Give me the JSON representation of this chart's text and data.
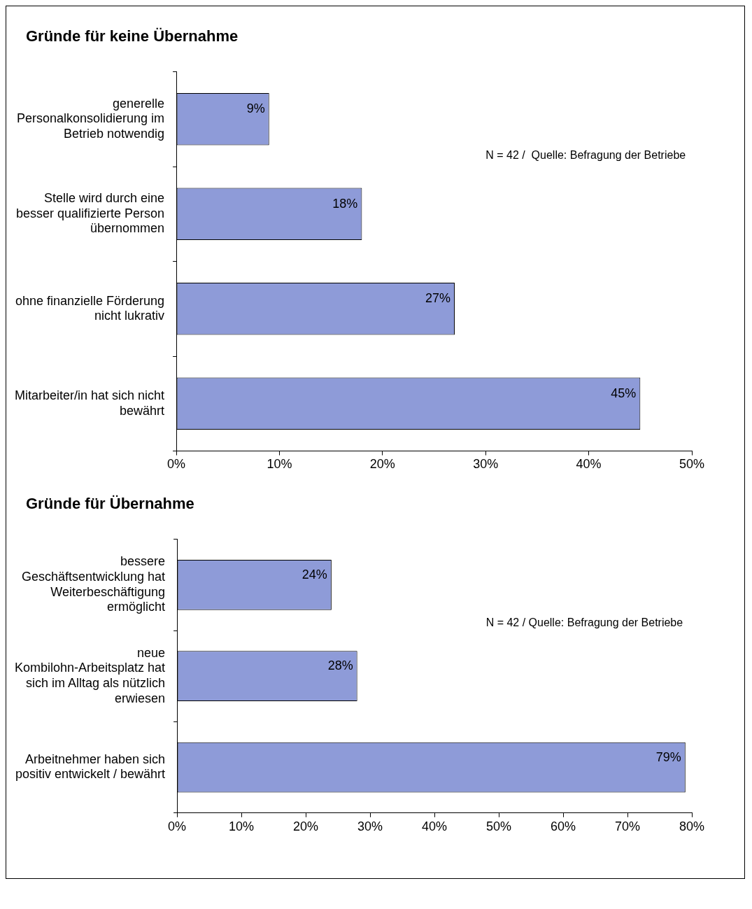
{
  "chart_data": [
    {
      "type": "bar",
      "orientation": "horizontal",
      "title": "Gründe für keine Übernahme",
      "categories": [
        "generelle Personalkonsolidierung im Betrieb notwendig",
        "Stelle wird durch eine besser qualifizierte Person übernommen",
        "ohne finanzielle Förderung nicht lukrativ",
        "Mitarbeiter/in hat sich nicht bewährt"
      ],
      "values": [
        9,
        18,
        27,
        45
      ],
      "value_labels": [
        "9%",
        "18%",
        "27%",
        "45%"
      ],
      "color": "#8e9bd8",
      "xlim": [
        0,
        50
      ],
      "xticks": [
        {
          "value": 0,
          "label": "0%"
        },
        {
          "value": 10,
          "label": "10%"
        },
        {
          "value": 20,
          "label": "20%"
        },
        {
          "value": 30,
          "label": "30%"
        },
        {
          "value": 40,
          "label": "40%"
        },
        {
          "value": 50,
          "label": "50%"
        }
      ],
      "grid": false,
      "legend": false,
      "annotations": [
        "N = 42 /  Quelle: Befragung der Betriebe"
      ]
    },
    {
      "type": "bar",
      "orientation": "horizontal",
      "title": "Gründe für Übernahme",
      "categories": [
        "bessere Geschäftsentwicklung hat Weiterbeschäftigung ermöglicht",
        "neue Kombilohn-Arbeitsplatz hat sich im Alltag als nützlich erwiesen",
        "Arbeitnehmer haben sich positiv entwickelt / bewährt"
      ],
      "values": [
        24,
        28,
        79
      ],
      "value_labels": [
        "24%",
        "28%",
        "79%"
      ],
      "color": "#8e9bd8",
      "xlim": [
        0,
        80
      ],
      "xticks": [
        {
          "value": 0,
          "label": "0%"
        },
        {
          "value": 10,
          "label": "10%"
        },
        {
          "value": 20,
          "label": "20%"
        },
        {
          "value": 30,
          "label": "30%"
        },
        {
          "value": 40,
          "label": "40%"
        },
        {
          "value": 50,
          "label": "50%"
        },
        {
          "value": 60,
          "label": "60%"
        },
        {
          "value": 70,
          "label": "70%"
        },
        {
          "value": 80,
          "label": "80%"
        }
      ],
      "grid": false,
      "legend": false,
      "annotations": [
        "N = 42 / Quelle: Befragung der Betriebe"
      ]
    }
  ]
}
